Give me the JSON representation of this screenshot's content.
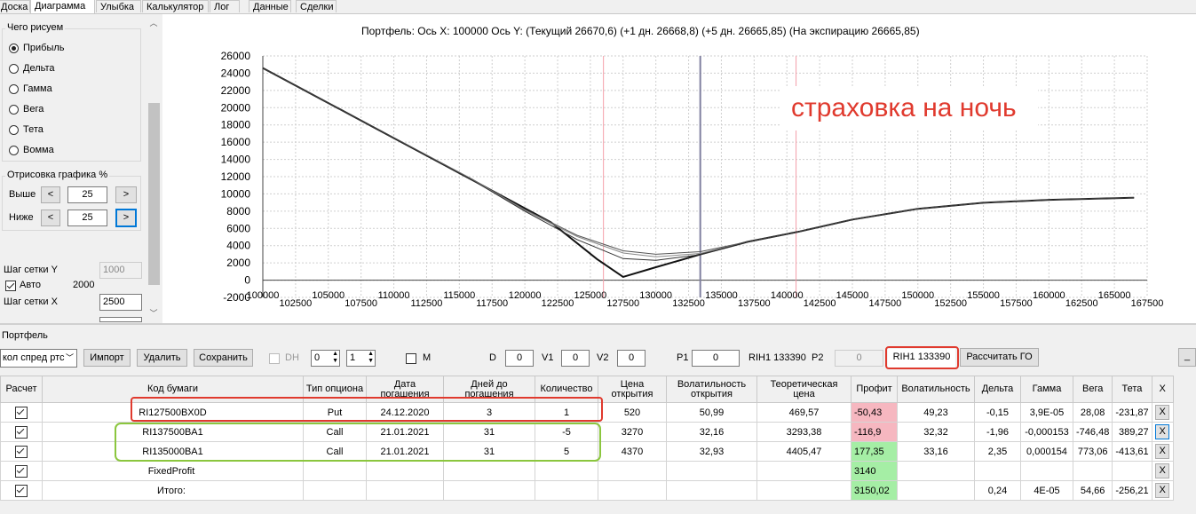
{
  "tabs": [
    "Доска",
    "Диаграмма",
    "Улыбка",
    "Калькулятор",
    "Лог",
    "Данные",
    "Сделки"
  ],
  "left_panel": {
    "what_title": "Чего рисуем",
    "options": [
      "Прибыль",
      "Дельта",
      "Гамма",
      "Вега",
      "Тета",
      "Вомма"
    ],
    "selected": "Прибыль",
    "render_title": "Отрисовка графика %",
    "above_label": "Выше",
    "above_value": "25",
    "below_label": "Ниже",
    "below_value": "25",
    "prev": "<",
    "next": ">",
    "grid_y_label": "Шаг сетки Y",
    "grid_y_value": "1000",
    "auto_label": "Авто",
    "auto_value": "2000",
    "grid_x_label": "Шаг сетки X",
    "grid_x_value": "2500"
  },
  "chart_title": "Портфель: Ось X: 100000 Ось Y:  (Текущий 26670,6)  (+1 дн. 26668,8)  (+5 дн. 26665,85)  (На экспирацию 26665,85)",
  "annotation": "страховка на ночь",
  "chart_data": {
    "type": "line",
    "xlim": [
      100000,
      167500
    ],
    "ylim": [
      -2000,
      26000
    ],
    "x_ticks_top": [
      "100000",
      "105000",
      "110000",
      "115000",
      "120000",
      "125000",
      "130000",
      "135000",
      "140000",
      "145000",
      "150000",
      "155000",
      "160000",
      "165000"
    ],
    "x_ticks_bottom": [
      "102500",
      "107500",
      "112500",
      "117500",
      "122500",
      "127500",
      "132500",
      "137500",
      "142500",
      "147500",
      "152500",
      "157500",
      "162500",
      "167500"
    ],
    "y_ticks": [
      "26000",
      "24000",
      "22000",
      "20000",
      "18000",
      "16000",
      "14000",
      "12000",
      "10000",
      "8000",
      "6000",
      "4000",
      "2000",
      "0",
      "-2000"
    ],
    "markers": {
      "current": 133390,
      "pink_left": 126000,
      "pink_right": 140700
    },
    "series": [
      {
        "kind": "expiration",
        "x": [
          100000,
          108000,
          116000,
          122000,
          125500,
          127500,
          130000,
          133390,
          137000,
          141000,
          145000,
          150000,
          155000,
          160000,
          166500
        ],
        "y": [
          24600,
          18100,
          11600,
          6700,
          2450,
          380,
          1500,
          2980,
          4440,
          5650,
          7030,
          8270,
          8970,
          9310,
          9560
        ]
      },
      {
        "kind": "current",
        "x": [
          100000,
          108000,
          116000,
          120000,
          124000,
          127500,
          130000,
          133390,
          137000,
          141000,
          145000,
          150000,
          155000,
          160000,
          166500
        ],
        "y": [
          24600,
          18100,
          11700,
          8200,
          5200,
          3400,
          3000,
          3300,
          4440,
          5650,
          7030,
          8270,
          8970,
          9310,
          9560
        ]
      },
      {
        "kind": "plus1",
        "x": [
          100000,
          108000,
          116000,
          120000,
          124000,
          127500,
          130000,
          133390,
          137000,
          141000,
          145000,
          150000,
          155000,
          160000,
          166500
        ],
        "y": [
          24600,
          18100,
          11650,
          8100,
          5050,
          3150,
          2700,
          3100,
          4440,
          5650,
          7030,
          8270,
          8970,
          9310,
          9560
        ]
      },
      {
        "kind": "plus5",
        "x": [
          100000,
          108000,
          116000,
          120000,
          124000,
          127500,
          130000,
          133390,
          137000,
          141000,
          145000,
          150000,
          155000,
          160000,
          166500
        ],
        "y": [
          24600,
          18100,
          11600,
          8000,
          4700,
          2500,
          2300,
          2950,
          4440,
          5650,
          7030,
          8270,
          8970,
          9310,
          9560
        ]
      }
    ]
  },
  "portfolio": {
    "label": "Портфель",
    "combo": "кол спред ртс",
    "import": "Импорт",
    "delete": "Удалить",
    "save": "Сохранить",
    "dh": "DH",
    "s1": "0",
    "s2": "1",
    "m": "M",
    "d_label": "D",
    "d_value": "0",
    "v1_label": "V1",
    "v1_value": "0",
    "v2_label": "V2",
    "v2_value": "0",
    "p1_label": "P1",
    "p1_value": "0",
    "rih_text": "RIH1 133390",
    "p2_label": "P2",
    "p2_value": "0",
    "rih_box": "RIH1 133390",
    "calc_go": "Рассчитать ГО",
    "minimize": "_"
  },
  "table": {
    "headers": [
      "Расчет",
      "Код бумаги",
      "Тип опциона",
      "Дата погашения",
      "Дней до погашения",
      "Количество",
      "Цена открытия",
      "Волатильность открытия",
      "Теоретическая цена",
      "Профит",
      "Волатильность",
      "Дельта",
      "Гамма",
      "Вега",
      "Тета",
      "X"
    ],
    "rows": [
      {
        "code": "RI127500BX0D",
        "type": "Put",
        "date": "24.12.2020",
        "days": "3",
        "qty": "1",
        "open": "520",
        "vol_open": "50,99",
        "theo": "469,57",
        "profit": "-50,43",
        "profit_color": "red",
        "vol": "49,23",
        "delta": "-0,15",
        "gamma": "3,9E-05",
        "vega": "28,08",
        "theta": "-231,87",
        "x": "X"
      },
      {
        "code": "RI137500BA1",
        "type": "Call",
        "date": "21.01.2021",
        "days": "31",
        "qty": "-5",
        "open": "3270",
        "vol_open": "32,16",
        "theo": "3293,38",
        "profit": "-116,9",
        "profit_color": "red",
        "vol": "32,32",
        "delta": "-1,96",
        "gamma": "-0,000153",
        "vega": "-746,48",
        "theta": "389,27",
        "x": "X"
      },
      {
        "code": "RI135000BA1",
        "type": "Call",
        "date": "21.01.2021",
        "days": "31",
        "qty": "5",
        "open": "4370",
        "vol_open": "32,93",
        "theo": "4405,47",
        "profit": "177,35",
        "profit_color": "green",
        "vol": "33,16",
        "delta": "2,35",
        "gamma": "0,000154",
        "vega": "773,06",
        "theta": "-413,61",
        "x": "X"
      },
      {
        "code": "FixedProfit",
        "type": "",
        "date": "",
        "days": "",
        "qty": "",
        "open": "",
        "vol_open": "",
        "theo": "",
        "profit": "3140",
        "profit_color": "green",
        "vol": "",
        "delta": "",
        "gamma": "",
        "vega": "",
        "theta": "",
        "x": "X"
      },
      {
        "code": "Итого:",
        "type": "",
        "date": "",
        "days": "",
        "qty": "",
        "open": "",
        "vol_open": "",
        "theo": "",
        "profit": "3150,02",
        "profit_color": "green",
        "vol": "",
        "delta": "0,24",
        "gamma": "4E-05",
        "vega": "54,66",
        "theta": "-256,21",
        "x": "X"
      }
    ]
  }
}
